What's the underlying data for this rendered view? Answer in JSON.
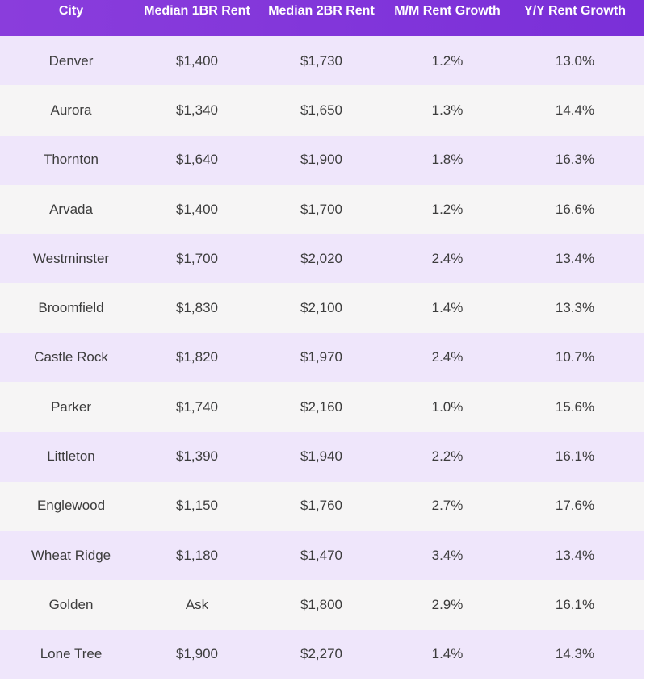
{
  "table": {
    "headers": [
      "City",
      "Median 1BR Rent",
      "Median 2BR Rent",
      "M/M Rent Growth",
      "Y/Y Rent Growth"
    ],
    "rows": [
      [
        "Denver",
        "$1,400",
        "$1,730",
        "1.2%",
        "13.0%"
      ],
      [
        "Aurora",
        "$1,340",
        "$1,650",
        "1.3%",
        "14.4%"
      ],
      [
        "Thornton",
        "$1,640",
        "$1,900",
        "1.8%",
        "16.3%"
      ],
      [
        "Arvada",
        "$1,400",
        "$1,700",
        "1.2%",
        "16.6%"
      ],
      [
        "Westminster",
        "$1,700",
        "$2,020",
        "2.4%",
        "13.4%"
      ],
      [
        "Broomfield",
        "$1,830",
        "$2,100",
        "1.4%",
        "13.3%"
      ],
      [
        "Castle Rock",
        "$1,820",
        "$1,970",
        "2.4%",
        "10.7%"
      ],
      [
        "Parker",
        "$1,740",
        "$2,160",
        "1.0%",
        "15.6%"
      ],
      [
        "Littleton",
        "$1,390",
        "$1,940",
        "2.2%",
        "16.1%"
      ],
      [
        "Englewood",
        "$1,150",
        "$1,760",
        "2.7%",
        "17.6%"
      ],
      [
        "Wheat Ridge",
        "$1,180",
        "$1,470",
        "3.4%",
        "13.4%"
      ],
      [
        "Golden",
        "Ask",
        "$1,800",
        "2.9%",
        "16.1%"
      ],
      [
        "Lone Tree",
        "$1,900",
        "$2,270",
        "1.4%",
        "14.3%"
      ]
    ]
  },
  "colors": {
    "header_bg": "#8a3ddc",
    "row_odd_bg": "#efe6fb",
    "row_even_bg": "#f6f5f5",
    "text": "#3c3c3c"
  }
}
